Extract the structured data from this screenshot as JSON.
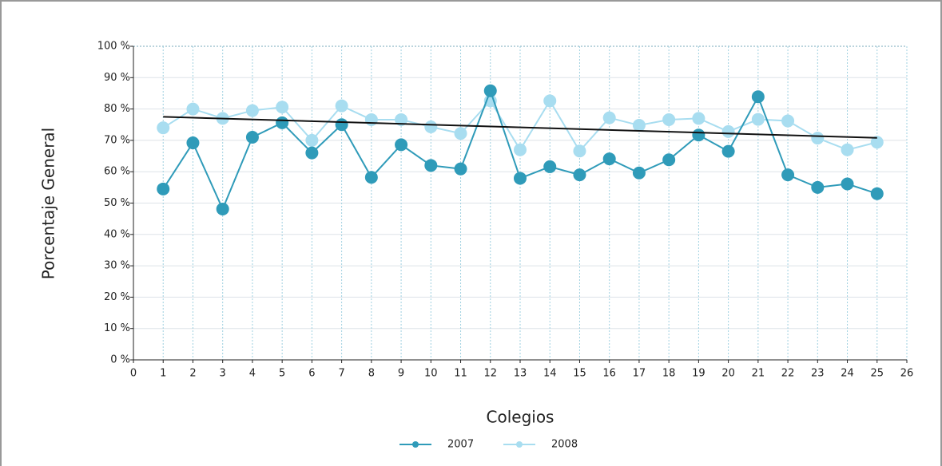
{
  "chart_data": {
    "type": "line",
    "x_label": "Colegios",
    "y_label": "Porcentaje General",
    "x": [
      1,
      2,
      3,
      4,
      5,
      6,
      7,
      8,
      9,
      10,
      11,
      12,
      13,
      14,
      15,
      16,
      17,
      18,
      19,
      20,
      21,
      22,
      23,
      24,
      25
    ],
    "series": [
      {
        "name": "2007",
        "color": "#2f9bb9",
        "values": [
          54.5,
          69.2,
          48.1,
          71,
          75.6,
          66,
          75,
          58.2,
          68.6,
          62,
          60.9,
          85.8,
          57.9,
          61.6,
          59,
          64.1,
          59.6,
          63.8,
          71.7,
          66.5,
          83.9,
          59,
          55,
          56.1,
          53
        ]
      },
      {
        "name": "2008",
        "color": "#a8ddf0",
        "values": [
          74,
          80,
          77,
          79.5,
          80.6,
          70,
          81,
          76.6,
          76.6,
          74.3,
          72.2,
          82.6,
          67,
          82.6,
          66.6,
          77.2,
          74.8,
          76.6,
          77,
          72.8,
          76.7,
          76.2,
          70.7,
          67,
          69.4
        ]
      }
    ],
    "trendline": {
      "x": [
        1,
        25
      ],
      "values": [
        77.5,
        70.8
      ],
      "color": "#111111"
    },
    "xlim": [
      0,
      26
    ],
    "xticks": [
      0,
      1,
      2,
      3,
      4,
      5,
      6,
      7,
      8,
      9,
      10,
      11,
      12,
      13,
      14,
      15,
      16,
      17,
      18,
      19,
      20,
      21,
      22,
      23,
      24,
      25,
      26
    ],
    "ylim": [
      0,
      100
    ],
    "yticks": [
      {
        "value": 0,
        "label": "0 %"
      },
      {
        "value": 10,
        "label": "10 %"
      },
      {
        "value": 20,
        "label": "20 %"
      },
      {
        "value": 30,
        "label": "30 %"
      },
      {
        "value": 40,
        "label": "40 %"
      },
      {
        "value": 50,
        "label": "50 %"
      },
      {
        "value": 60,
        "label": "60 %"
      },
      {
        "value": 70,
        "label": "70 %"
      },
      {
        "value": 80,
        "label": "80 %"
      },
      {
        "value": 90,
        "label": "90 %"
      },
      {
        "value": 100,
        "label": "100 %"
      }
    ],
    "grid": true,
    "legend": "bottom"
  }
}
